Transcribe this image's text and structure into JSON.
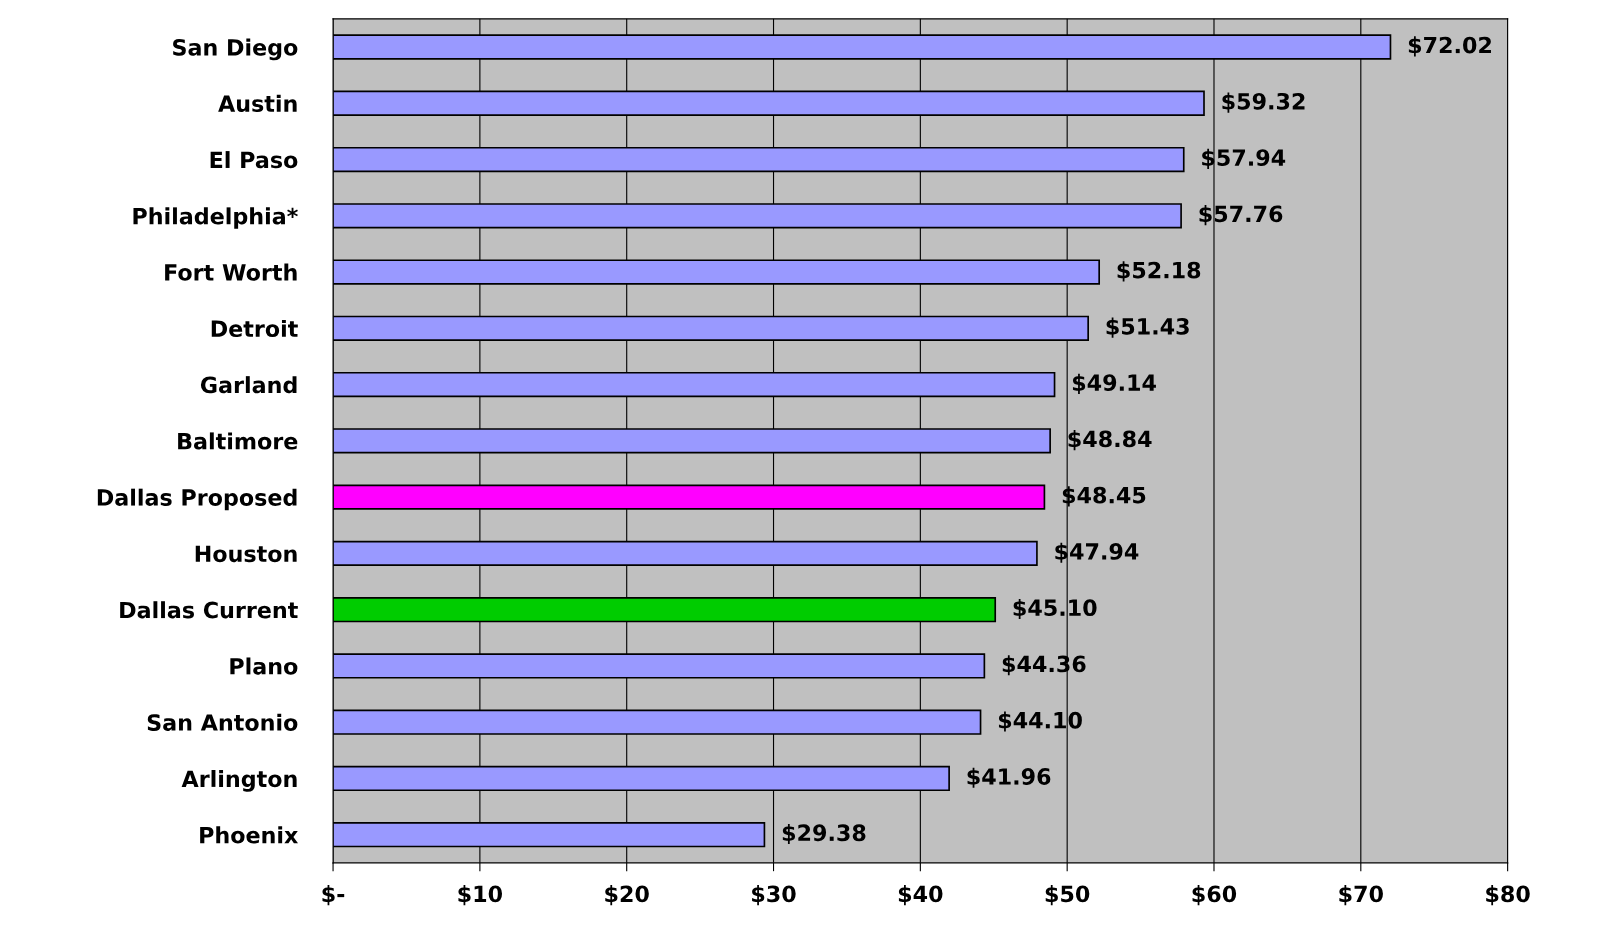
{
  "chart_data": {
    "type": "bar",
    "orientation": "horizontal",
    "categories": [
      "San Diego",
      "Austin",
      "El Paso",
      "Philadelphia*",
      "Fort Worth",
      "Detroit",
      "Garland",
      "Baltimore",
      "Dallas Proposed",
      "Houston",
      "Dallas Current",
      "Plano",
      "San Antonio",
      "Arlington",
      "Phoenix"
    ],
    "values": [
      72.02,
      59.32,
      57.94,
      57.76,
      52.18,
      51.43,
      49.14,
      48.84,
      48.45,
      47.94,
      45.1,
      44.36,
      44.1,
      41.96,
      29.38
    ],
    "value_labels": [
      "$72.02",
      "$59.32",
      "$57.94",
      "$57.76",
      "$52.18",
      "$51.43",
      "$49.14",
      "$48.84",
      "$48.45",
      "$47.94",
      "$45.10",
      "$44.36",
      "$44.10",
      "$41.96",
      "$29.38"
    ],
    "colors": [
      "#9999ff",
      "#9999ff",
      "#9999ff",
      "#9999ff",
      "#9999ff",
      "#9999ff",
      "#9999ff",
      "#9999ff",
      "#ff00ff",
      "#9999ff",
      "#00cc00",
      "#9999ff",
      "#9999ff",
      "#9999ff",
      "#9999ff"
    ],
    "xlim": [
      0,
      80
    ],
    "xticks": [
      {
        "value": 0,
        "label": "$-"
      },
      {
        "value": 10,
        "label": "$10"
      },
      {
        "value": 20,
        "label": "$20"
      },
      {
        "value": 30,
        "label": "$30"
      },
      {
        "value": 40,
        "label": "$40"
      },
      {
        "value": 50,
        "label": "$50"
      },
      {
        "value": 60,
        "label": "$60"
      },
      {
        "value": 70,
        "label": "$70"
      },
      {
        "value": 80,
        "label": "$80"
      }
    ],
    "grid": "x",
    "legend": false
  }
}
